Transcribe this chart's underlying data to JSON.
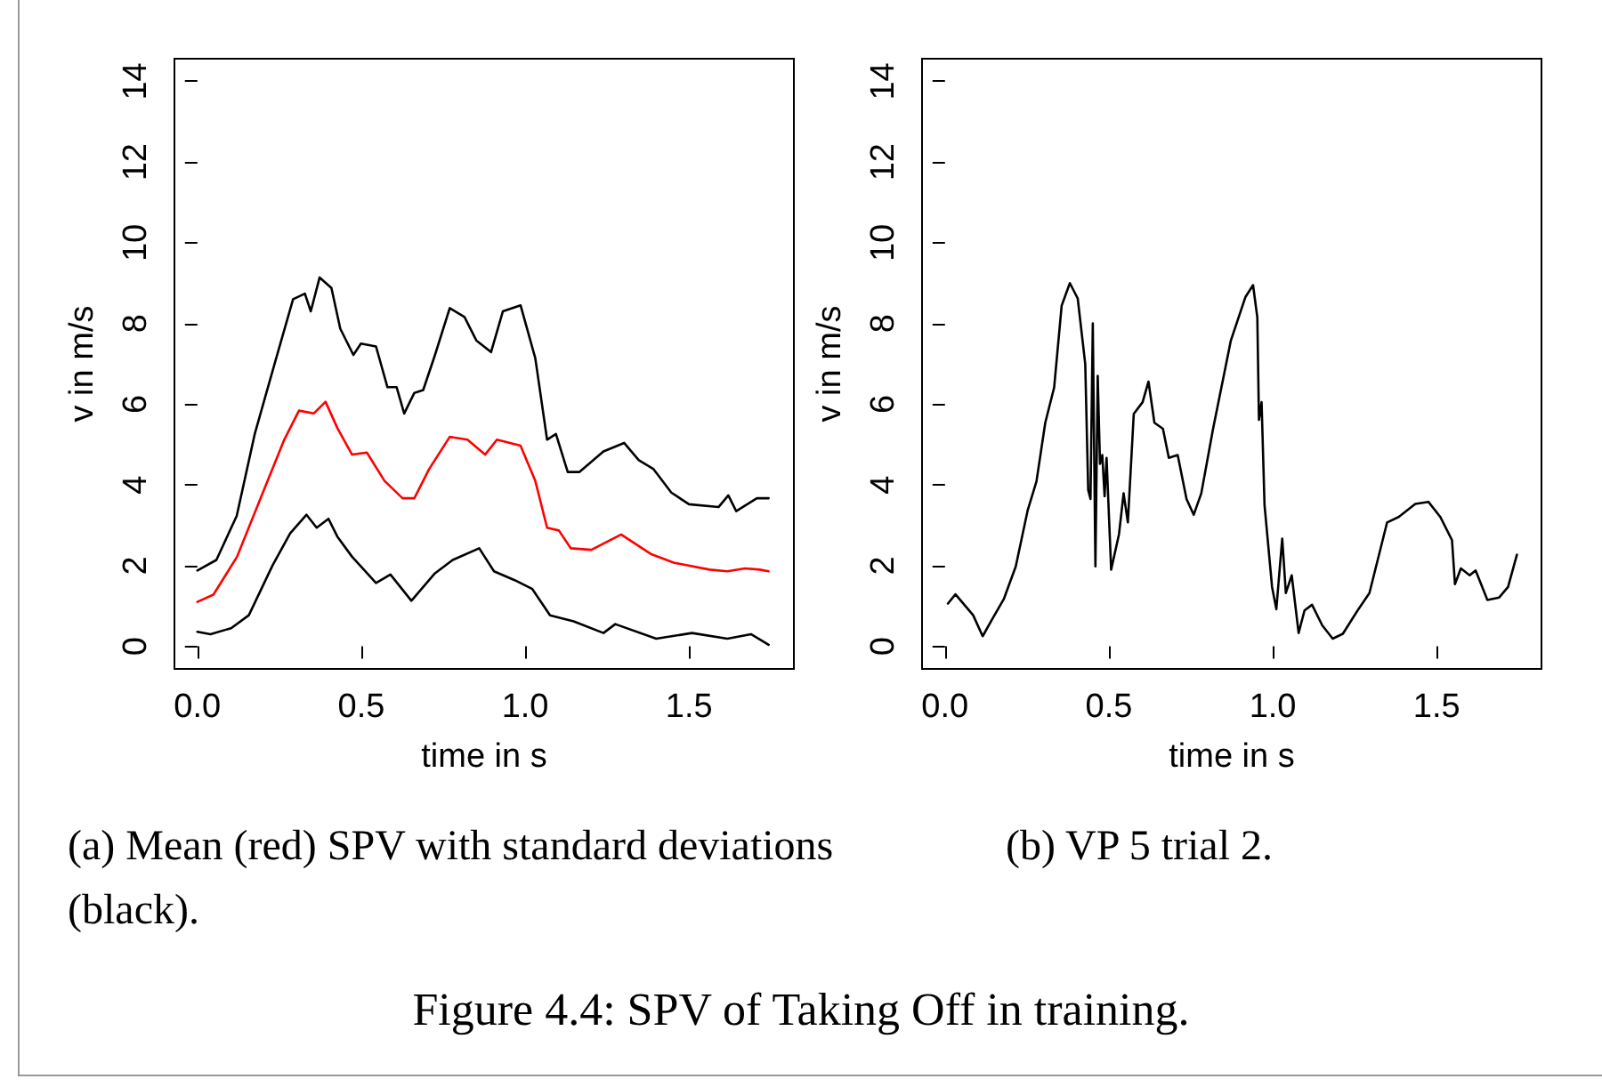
{
  "chart_data": [
    {
      "type": "line",
      "xlabel": "time in s",
      "ylabel": "v in m/s",
      "xlim": [
        -0.07,
        1.82
      ],
      "ylim": [
        -0.56,
        14.56
      ],
      "xticks": [
        {
          "value": 0,
          "label": "0.0"
        },
        {
          "value": 0.5,
          "label": "0.5"
        },
        {
          "value": 1,
          "label": "1.0"
        },
        {
          "value": 1.5,
          "label": "1.5"
        }
      ],
      "yticks": [
        0,
        2,
        4,
        6,
        8,
        10,
        12,
        14
      ],
      "series": [
        {
          "color": "#000000",
          "x": [
            0,
            0.058,
            0.12,
            0.175,
            0.238,
            0.292,
            0.328,
            0.346,
            0.373,
            0.409,
            0.436,
            0.476,
            0.499,
            0.545,
            0.58,
            0.608,
            0.631,
            0.662,
            0.689,
            0.725,
            0.77,
            0.815,
            0.851,
            0.896,
            0.932,
            0.986,
            1.031,
            1.067,
            1.094,
            1.13,
            1.166,
            1.239,
            1.302,
            1.347,
            1.392,
            1.446,
            1.5,
            1.59,
            1.62,
            1.644,
            1.707,
            1.743
          ],
          "values": [
            1.88,
            2.14,
            3.23,
            5.26,
            7.07,
            8.6,
            8.74,
            8.3,
            9.14,
            8.88,
            7.87,
            7.22,
            7.5,
            7.43,
            6.42,
            6.42,
            5.77,
            6.28,
            6.35,
            7.22,
            8.38,
            8.16,
            7.58,
            7.29,
            8.3,
            8.45,
            7.14,
            5.12,
            5.26,
            4.32,
            4.32,
            4.83,
            5.04,
            4.61,
            4.39,
            3.81,
            3.52,
            3.45,
            3.74,
            3.35,
            3.67,
            3.67
          ]
        },
        {
          "color": "#ff0000",
          "x": [
            0,
            0.049,
            0.121,
            0.193,
            0.265,
            0.31,
            0.355,
            0.391,
            0.427,
            0.472,
            0.517,
            0.571,
            0.626,
            0.662,
            0.707,
            0.77,
            0.824,
            0.878,
            0.914,
            0.986,
            1.031,
            1.067,
            1.103,
            1.139,
            1.202,
            1.293,
            1.383,
            1.455,
            1.563,
            1.617,
            1.671,
            1.716,
            1.743
          ],
          "values": [
            1.1,
            1.28,
            2.22,
            3.67,
            5.12,
            5.84,
            5.77,
            6.06,
            5.41,
            4.75,
            4.8,
            4.1,
            3.67,
            3.67,
            4.39,
            5.19,
            5.12,
            4.75,
            5.12,
            4.97,
            4.1,
            2.94,
            2.87,
            2.43,
            2.39,
            2.77,
            2.29,
            2.07,
            1.9,
            1.86,
            1.93,
            1.9,
            1.86
          ]
        },
        {
          "color": "#000000",
          "x": [
            0,
            0.04,
            0.103,
            0.157,
            0.229,
            0.283,
            0.333,
            0.364,
            0.4,
            0.427,
            0.472,
            0.545,
            0.589,
            0.653,
            0.725,
            0.779,
            0.86,
            0.905,
            0.968,
            1.022,
            1.076,
            1.148,
            1.239,
            1.275,
            1.4,
            1.509,
            1.617,
            1.689,
            1.743
          ],
          "values": [
            0.36,
            0.3,
            0.45,
            0.77,
            2.0,
            2.8,
            3.26,
            2.94,
            3.16,
            2.72,
            2.22,
            1.57,
            1.78,
            1.13,
            1.81,
            2.14,
            2.43,
            1.86,
            1.64,
            1.42,
            0.77,
            0.62,
            0.33,
            0.55,
            0.19,
            0.33,
            0.19,
            0.3,
            0.04
          ]
        }
      ],
      "annotations": [
        "(a) Mean (red) SPV with standard deviations (black)."
      ]
    },
    {
      "type": "line",
      "xlabel": "time in s",
      "ylabel": "v in m/s",
      "xlim": [
        -0.07,
        1.82
      ],
      "ylim": [
        -0.56,
        14.56
      ],
      "xticks": [
        {
          "value": 0,
          "label": "0.0"
        },
        {
          "value": 0.5,
          "label": "0.5"
        },
        {
          "value": 1,
          "label": "1.0"
        },
        {
          "value": 1.5,
          "label": "1.5"
        }
      ],
      "yticks": [
        0,
        2,
        4,
        6,
        8,
        10,
        12,
        14
      ],
      "series": [
        {
          "color": "#000000",
          "x": [
            0.009,
            0.032,
            0.086,
            0.115,
            0.144,
            0.18,
            0.216,
            0.252,
            0.279,
            0.306,
            0.333,
            0.356,
            0.381,
            0.405,
            0.428,
            0.437,
            0.444,
            0.451,
            0.459,
            0.466,
            0.473,
            0.48,
            0.487,
            0.493,
            0.507,
            0.531,
            0.545,
            0.558,
            0.576,
            0.603,
            0.621,
            0.639,
            0.665,
            0.683,
            0.71,
            0.737,
            0.759,
            0.782,
            0.818,
            0.872,
            0.917,
            0.94,
            0.953,
            0.958,
            0.966,
            0.975,
            0.998,
            1.011,
            1.029,
            1.04,
            1.058,
            1.079,
            1.097,
            1.12,
            1.151,
            1.183,
            1.214,
            1.259,
            1.295,
            1.349,
            1.385,
            1.435,
            1.475,
            1.511,
            1.547,
            1.556,
            1.574,
            1.601,
            1.619,
            1.655,
            1.691,
            1.718,
            1.745
          ],
          "values": [
            1.06,
            1.29,
            0.77,
            0.25,
            0.67,
            1.18,
            1.98,
            3.36,
            4.08,
            5.54,
            6.41,
            8.44,
            9.0,
            8.62,
            6.99,
            3.87,
            3.65,
            8.0,
            1.98,
            6.7,
            4.52,
            4.74,
            3.72,
            4.67,
            1.9,
            2.78,
            3.79,
            3.07,
            5.76,
            6.05,
            6.56,
            5.54,
            5.39,
            4.67,
            4.74,
            3.65,
            3.26,
            3.79,
            5.39,
            7.57,
            8.66,
            8.95,
            8.15,
            5.61,
            6.05,
            3.5,
            1.47,
            0.92,
            2.67,
            1.32,
            1.76,
            0.33,
            0.89,
            1.03,
            0.52,
            0.19,
            0.31,
            0.89,
            1.32,
            3.07,
            3.21,
            3.53,
            3.58,
            3.21,
            2.63,
            1.54,
            1.93,
            1.76,
            1.88,
            1.15,
            1.21,
            1.47,
            2.27
          ]
        }
      ],
      "annotations": [
        "(b) VP 5 trial 2.",
        "Figure 4.4: SPV of Taking Off in training."
      ]
    }
  ]
}
